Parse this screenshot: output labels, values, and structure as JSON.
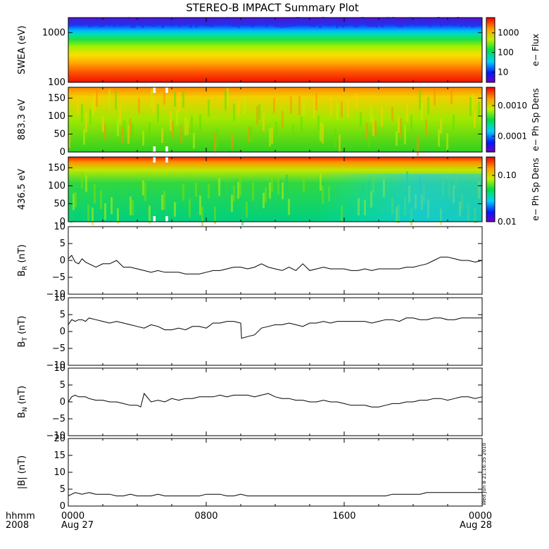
{
  "title": "STEREO-B IMPACT Summary Plot",
  "timestamp": "Wed Jun 8 21:16:35 2010",
  "chart_data": [
    {
      "id": "swea",
      "type": "heatmap",
      "ylabel": "SWEA (eV)",
      "ylim": [
        100,
        2000
      ],
      "yscale": "log",
      "yticks": [
        "100",
        "1000"
      ],
      "colorbar": {
        "label": "e− Flux",
        "ticks": [
          "10",
          "100",
          "1000"
        ],
        "scale": "log",
        "range": [
          3,
          6000
        ]
      }
    },
    {
      "id": "pad883",
      "type": "heatmap",
      "ylabel": "883.3 eV",
      "ylim": [
        0,
        180
      ],
      "yticks": [
        "0",
        "50",
        "100",
        "150"
      ],
      "colorbar": {
        "label": "e− Ph Sp Dens",
        "ticks": [
          "0.0001",
          "0.0010"
        ],
        "scale": "log",
        "range": [
          3e-05,
          0.004
        ]
      }
    },
    {
      "id": "pad436",
      "type": "heatmap",
      "ylabel": "436.5 eV",
      "ylim": [
        0,
        180
      ],
      "yticks": [
        "0",
        "50",
        "100",
        "150"
      ],
      "colorbar": {
        "label": "e− Ph Sp Dens",
        "ticks": [
          "0.01",
          "0.10"
        ],
        "scale": "log",
        "range": [
          0.01,
          0.25
        ]
      }
    },
    {
      "id": "br",
      "type": "line",
      "ylabel": "B_R (nT)",
      "ylim": [
        -10,
        10
      ],
      "yticks": [
        "−10",
        "−5",
        "0",
        "5",
        "10"
      ],
      "x_hours": [
        0,
        0.2,
        0.4,
        0.6,
        0.8,
        1,
        1.2,
        1.4,
        1.6,
        2,
        2.4,
        2.8,
        3.2,
        3.6,
        4,
        4.4,
        4.8,
        5.2,
        5.6,
        6,
        6.4,
        6.8,
        7.2,
        7.6,
        8,
        8.4,
        8.8,
        9.2,
        9.6,
        10,
        10.4,
        10.8,
        11.2,
        11.6,
        12,
        12.4,
        12.8,
        13.2,
        13.6,
        14,
        14.4,
        14.8,
        15.2,
        15.6,
        16,
        16.4,
        16.8,
        17.2,
        17.6,
        18,
        18.4,
        18.8,
        19.2,
        19.6,
        20,
        20.4,
        20.8,
        21.2,
        21.6,
        22,
        22.4,
        22.8,
        23.2,
        23.6,
        24
      ],
      "y": [
        0.5,
        1.5,
        -0.5,
        -1,
        0.5,
        -0.5,
        -1,
        -1.5,
        -2,
        -1,
        -1,
        0,
        -2,
        -2,
        -2.5,
        -3,
        -3.5,
        -3,
        -3.5,
        -3.5,
        -3.5,
        -4,
        -4,
        -4,
        -3.5,
        -3,
        -3,
        -2.5,
        -2,
        -2,
        -2.5,
        -2,
        -1,
        -2,
        -2.5,
        -3,
        -2,
        -3,
        -1,
        -3,
        -2.5,
        -2,
        -2.5,
        -2.5,
        -2.5,
        -3,
        -3,
        -2.5,
        -3,
        -2.5,
        -2.5,
        -2.5,
        -2.5,
        -2,
        -2,
        -1.5,
        -1,
        0,
        1,
        1,
        0.5,
        0,
        0,
        -0.5,
        0
      ]
    },
    {
      "id": "bt",
      "type": "line",
      "ylabel": "B_T (nT)",
      "ylim": [
        -10,
        10
      ],
      "yticks": [
        "−10",
        "−5",
        "0",
        "5",
        "10"
      ],
      "x_hours": [
        0,
        0.2,
        0.4,
        0.6,
        0.8,
        1,
        1.2,
        1.6,
        2,
        2.4,
        2.8,
        3.2,
        3.6,
        4,
        4.4,
        4.8,
        5.2,
        5.6,
        6,
        6.4,
        6.8,
        7.2,
        7.6,
        8,
        8.4,
        8.8,
        9.2,
        9.6,
        10,
        10.05,
        10.4,
        10.8,
        11.2,
        11.6,
        12,
        12.4,
        12.8,
        13.2,
        13.6,
        14,
        14.4,
        14.8,
        15.2,
        15.6,
        16,
        16.4,
        16.8,
        17.2,
        17.6,
        18,
        18.4,
        18.8,
        19.2,
        19.6,
        20,
        20.4,
        20.8,
        21.2,
        21.6,
        22,
        22.4,
        22.8,
        23.2,
        23.6,
        24
      ],
      "y": [
        2,
        3.5,
        3,
        3.5,
        3.5,
        3,
        4,
        3.5,
        3,
        2.5,
        3,
        2.5,
        2,
        1.5,
        1,
        2,
        1.5,
        0.5,
        0.5,
        1,
        0.5,
        1.5,
        1.5,
        1,
        2.5,
        2.5,
        3,
        3,
        2.5,
        -2,
        -1.5,
        -1,
        1,
        1.5,
        2,
        2,
        2.5,
        2,
        1.5,
        2.5,
        2.5,
        3,
        2.5,
        3,
        3,
        3,
        3,
        3,
        2.5,
        3,
        3.5,
        3.5,
        3,
        4,
        4,
        3.5,
        3.5,
        4,
        4,
        3.5,
        3.5,
        4,
        4,
        4,
        4
      ]
    },
    {
      "id": "bn",
      "type": "line",
      "ylabel": "B_N (nT)",
      "ylim": [
        -10,
        10
      ],
      "yticks": [
        "−10",
        "−5",
        "0",
        "5",
        "10"
      ],
      "x_hours": [
        0,
        0.2,
        0.4,
        0.6,
        0.8,
        1,
        1.2,
        1.6,
        2,
        2.4,
        2.8,
        3.2,
        3.6,
        4,
        4.2,
        4.4,
        4.8,
        5.2,
        5.6,
        6,
        6.4,
        6.8,
        7.2,
        7.6,
        8,
        8.4,
        8.8,
        9.2,
        9.6,
        10,
        10.4,
        10.8,
        11.2,
        11.6,
        12,
        12.4,
        12.8,
        13.2,
        13.6,
        14,
        14.4,
        14.8,
        15.2,
        15.6,
        16,
        16.4,
        16.8,
        17.2,
        17.6,
        18,
        18.4,
        18.8,
        19.2,
        19.6,
        20,
        20.4,
        20.8,
        21.2,
        21.6,
        22,
        22.4,
        22.8,
        23.2,
        23.6,
        24
      ],
      "y": [
        0,
        1.5,
        2,
        1.5,
        1.5,
        1.5,
        1,
        0.5,
        0.5,
        0,
        0,
        -0.5,
        -1,
        -1,
        -1.5,
        2.5,
        0,
        0.5,
        0,
        1,
        0.5,
        1,
        1,
        1.5,
        1.5,
        1.5,
        2,
        1.5,
        2,
        2,
        2,
        1.5,
        2,
        2.5,
        1.5,
        1,
        1,
        0.5,
        0.5,
        0,
        0,
        0.5,
        0,
        0,
        -0.5,
        -1,
        -1,
        -1,
        -1.5,
        -1.5,
        -1,
        -0.5,
        -0.5,
        0,
        0,
        0.5,
        0.5,
        1,
        1,
        0.5,
        1,
        1.5,
        1.5,
        1,
        1.5
      ]
    },
    {
      "id": "bmag",
      "type": "line",
      "ylabel": "|B| (nT)",
      "ylim": [
        0,
        20
      ],
      "yticks": [
        "0",
        "5",
        "10",
        "15",
        "20"
      ],
      "x_hours": [
        0,
        0.4,
        0.8,
        1.2,
        1.6,
        2,
        2.4,
        2.8,
        3.2,
        3.6,
        4,
        4.4,
        4.8,
        5.2,
        5.6,
        6,
        6.4,
        6.8,
        7.2,
        7.6,
        8,
        8.4,
        8.8,
        9.2,
        9.6,
        10,
        10.4,
        10.8,
        11.2,
        11.6,
        12,
        12.4,
        12.8,
        13.2,
        13.6,
        14,
        14.4,
        14.8,
        15.2,
        15.6,
        16,
        16.4,
        16.8,
        17.2,
        17.6,
        18,
        18.4,
        18.8,
        19.2,
        19.6,
        20,
        20.4,
        20.8,
        21.2,
        21.6,
        22,
        22.4,
        22.8,
        23.2,
        23.6,
        24
      ],
      "y": [
        3,
        4,
        3.5,
        4,
        3.5,
        3.5,
        3.5,
        3,
        3,
        3.5,
        3,
        3,
        3,
        3.5,
        3,
        3,
        3,
        3,
        3,
        3,
        3.5,
        3.5,
        3.5,
        3,
        3,
        3.5,
        3,
        3,
        3,
        3,
        3,
        3,
        3,
        3,
        3,
        3,
        3,
        3,
        3,
        3,
        3,
        3,
        3,
        3,
        3,
        3,
        3,
        3.5,
        3.5,
        3.5,
        3.5,
        3.5,
        4,
        4,
        4,
        4,
        4,
        4,
        4,
        4,
        4
      ]
    }
  ],
  "x_axis": {
    "ticks": [
      {
        "hour": 0,
        "label": "0000",
        "sublabel": "Aug 27"
      },
      {
        "hour": 8,
        "label": "0800",
        "sublabel": ""
      },
      {
        "hour": 16,
        "label": "1600",
        "sublabel": ""
      },
      {
        "hour": 24,
        "label": "0000",
        "sublabel": "Aug 28"
      }
    ],
    "row_label_1": "hhmm",
    "row_label_2": "2008"
  }
}
